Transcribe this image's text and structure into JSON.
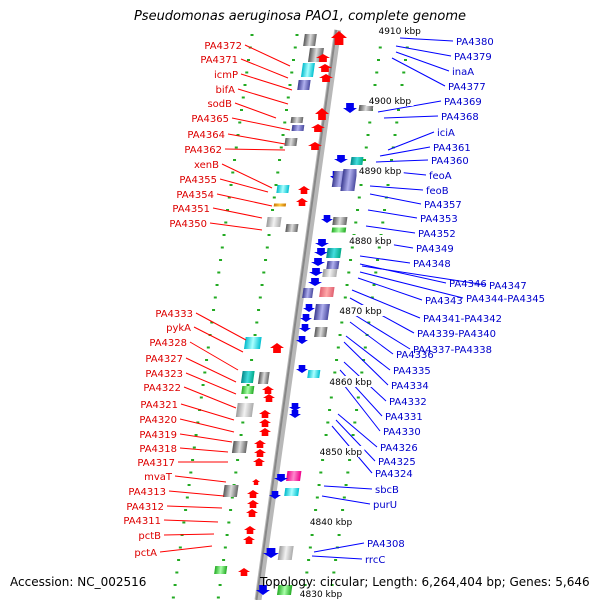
{
  "title": "Pseudomonas aeruginosa PAO1, complete genome",
  "footer": {
    "accession": "Accession: NC_002516",
    "topology": "Topology: circular; Length: 6,264,404 bp; Genes: 5,646"
  },
  "scale_labels": [
    "4910 kbp",
    "4900 kbp",
    "4890 kbp",
    "4880 kbp",
    "4870 kbp",
    "4860 kbp",
    "4850 kbp",
    "4840 kbp",
    "4830 kbp"
  ],
  "left_labels": [
    "PA4372",
    "PA4371",
    "icmP",
    "bifA",
    "sodB",
    "PA4365",
    "PA4364",
    "PA4362",
    "xenB",
    "PA4355",
    "PA4354",
    "PA4351",
    "PA4350",
    "PA4333",
    "pykA",
    "PA4328",
    "PA4327",
    "PA4323",
    "PA4322",
    "PA4321",
    "PA4320",
    "PA4319",
    "PA4318",
    "PA4317",
    "mvaT",
    "PA4313",
    "PA4312",
    "PA4311",
    "pctB",
    "pctA"
  ],
  "right_labels": [
    "PA4380",
    "PA4379",
    "inaA",
    "PA4377",
    "PA4369",
    "PA4368",
    "iciA",
    "PA4361",
    "PA4360",
    "feoA",
    "feoB",
    "PA4357",
    "PA4353",
    "PA4352",
    "PA4349",
    "PA4348",
    "PA4346",
    "PA4347",
    "PA4344-PA4345",
    "PA4343",
    "PA4341-PA4342",
    "PA4339-PA4340",
    "PA4337-PA4338",
    "PA4336",
    "PA4335",
    "PA4334",
    "PA4332",
    "PA4331",
    "PA4330",
    "PA4326",
    "PA4325",
    "PA4324",
    "sbcB",
    "purU",
    "PA4308",
    "rrcC"
  ],
  "colors": {
    "left_label": "#dd0000",
    "right_label": "#0000cc",
    "leader_left": "#ff0000",
    "leader_right": "#0000ff",
    "backbone": "#999999",
    "tick": "#22aa22",
    "forward_gene": "#ff0000",
    "reverse_gene": "#0000ee"
  }
}
